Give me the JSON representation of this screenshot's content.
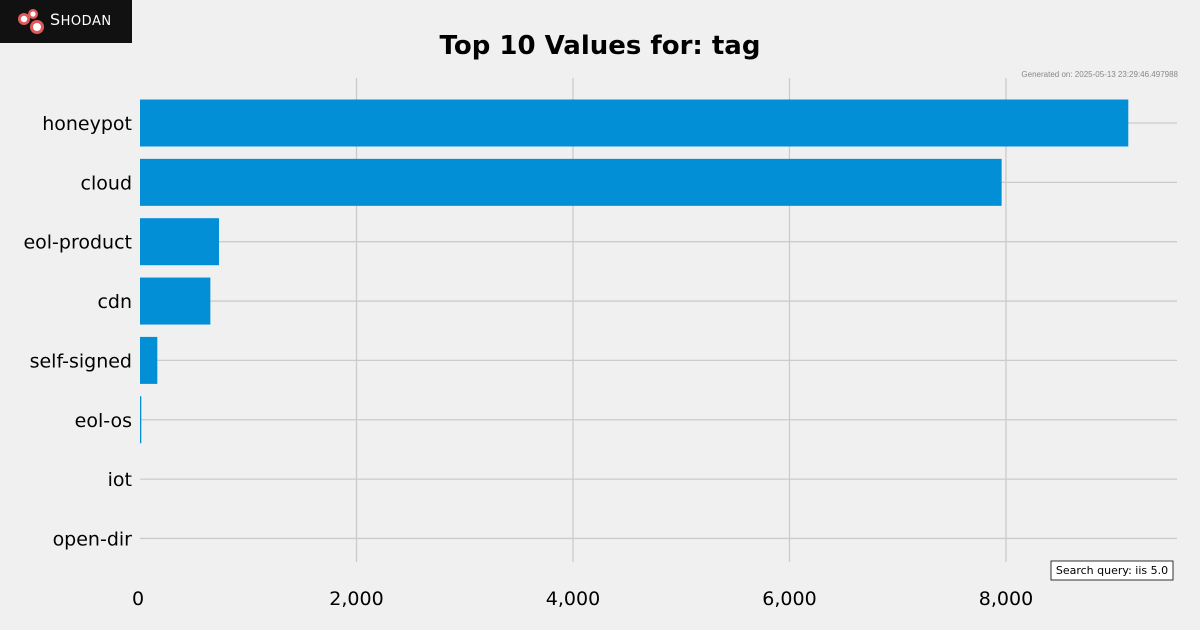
{
  "logo": {
    "text": "Shodan"
  },
  "colors": {
    "bar": "#038fd6",
    "grid": "#cbcbcb",
    "background": "#f0f0f0",
    "logo_bg": "#111111",
    "logo_accent": "#e05a5a"
  },
  "chart_data": {
    "type": "bar",
    "orientation": "horizontal",
    "title": "Top 10 Values for: tag",
    "generated": "Generated on: 2025-05-13 23:29:46.497988",
    "search_query": "Search query: iis 5.0",
    "categories": [
      "honeypot",
      "cloud",
      "eol-product",
      "cdn",
      "self-signed",
      "eol-os",
      "iot",
      "open-dir"
    ],
    "values": [
      9130,
      7960,
      730,
      650,
      160,
      12,
      0,
      0
    ],
    "xlim": [
      0,
      9580
    ],
    "xticks": [
      0,
      2000,
      4000,
      6000,
      8000
    ],
    "xtick_labels": [
      "0",
      "2,000",
      "4,000",
      "6,000",
      "8,000"
    ],
    "grid": true,
    "xlabel": "",
    "ylabel": ""
  }
}
